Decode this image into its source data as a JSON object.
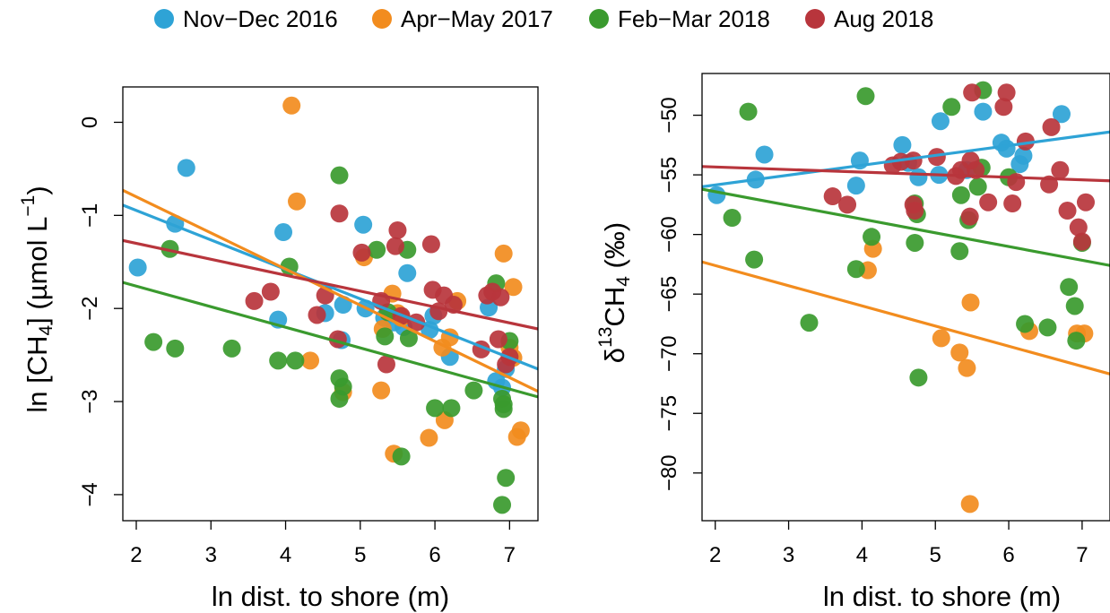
{
  "legend": {
    "items": [
      {
        "label": "Nov−Dec 2016",
        "color": "#2ea3d6"
      },
      {
        "label": "Apr−May 2017",
        "color": "#f28c1e"
      },
      {
        "label": "Feb−Mar 2018",
        "color": "#3a9a2e"
      },
      {
        "label": "Aug 2018",
        "color": "#b8353c"
      }
    ]
  },
  "chart_data": [
    {
      "type": "scatter",
      "xlabel": "ln dist. to shore (m)",
      "ylabel": "ln [CH4] (µmol L⁻¹)",
      "xlim": [
        1.82,
        7.38
      ],
      "ylim": [
        -4.28,
        0.38
      ],
      "xticks": [
        2,
        3,
        4,
        5,
        6,
        7
      ],
      "yticks": [
        0,
        -1,
        -2,
        -3,
        -4
      ],
      "legend_position": "top",
      "series": [
        {
          "name": "Nov−Dec 2016",
          "color": "#2ea3d6",
          "points": [
            [
              2.02,
              -1.56
            ],
            [
              2.52,
              -1.09
            ],
            [
              2.67,
              -0.49
            ],
            [
              3.9,
              -2.12
            ],
            [
              3.97,
              -1.18
            ],
            [
              4.53,
              -2.05
            ],
            [
              4.75,
              -2.34
            ],
            [
              4.77,
              -1.96
            ],
            [
              5.04,
              -1.1
            ],
            [
              5.07,
              -2.0
            ],
            [
              5.32,
              -2.1
            ],
            [
              5.45,
              -2.15
            ],
            [
              5.58,
              -2.2
            ],
            [
              5.63,
              -1.62
            ],
            [
              5.93,
              -2.23
            ],
            [
              5.98,
              -2.08
            ],
            [
              6.2,
              -2.52
            ],
            [
              6.72,
              -1.99
            ],
            [
              6.82,
              -2.78
            ],
            [
              6.9,
              -2.85
            ],
            [
              6.95,
              -2.65
            ]
          ],
          "fit": [
            [
              1.82,
              -0.89
            ],
            [
              7.38,
              -2.65
            ]
          ]
        },
        {
          "name": "Apr−May 2017",
          "color": "#f28c1e",
          "points": [
            [
              4.08,
              0.18
            ],
            [
              4.15,
              -0.85
            ],
            [
              4.33,
              -2.56
            ],
            [
              4.77,
              -2.9
            ],
            [
              5.05,
              -1.45
            ],
            [
              5.28,
              -2.88
            ],
            [
              5.3,
              -2.22
            ],
            [
              5.43,
              -1.84
            ],
            [
              5.45,
              -3.56
            ],
            [
              5.5,
              -2.05
            ],
            [
              5.55,
              -2.1
            ],
            [
              5.92,
              -3.39
            ],
            [
              6.1,
              -2.42
            ],
            [
              6.13,
              -3.2
            ],
            [
              6.2,
              -2.31
            ],
            [
              6.3,
              -1.92
            ],
            [
              6.92,
              -1.41
            ],
            [
              7.0,
              -2.42
            ],
            [
              7.05,
              -2.53
            ],
            [
              7.05,
              -1.77
            ],
            [
              7.1,
              -3.38
            ],
            [
              7.15,
              -3.31
            ]
          ],
          "fit": [
            [
              1.82,
              -0.73
            ],
            [
              7.38,
              -2.89
            ]
          ]
        },
        {
          "name": "Feb−Mar 2018",
          "color": "#3a9a2e",
          "points": [
            [
              2.23,
              -2.36
            ],
            [
              2.45,
              -1.36
            ],
            [
              2.52,
              -2.43
            ],
            [
              3.28,
              -2.43
            ],
            [
              3.9,
              -2.56
            ],
            [
              4.05,
              -1.55
            ],
            [
              4.13,
              -2.56
            ],
            [
              4.72,
              -0.57
            ],
            [
              4.72,
              -2.97
            ],
            [
              4.72,
              -2.75
            ],
            [
              4.77,
              -2.84
            ],
            [
              5.22,
              -1.37
            ],
            [
              5.33,
              -2.3
            ],
            [
              5.37,
              -2.04
            ],
            [
              5.55,
              -3.59
            ],
            [
              5.63,
              -1.37
            ],
            [
              5.65,
              -2.32
            ],
            [
              6.0,
              -3.07
            ],
            [
              6.22,
              -3.07
            ],
            [
              6.52,
              -2.88
            ],
            [
              6.82,
              -1.73
            ],
            [
              6.9,
              -2.97
            ],
            [
              6.92,
              -3.08
            ],
            [
              6.9,
              -4.11
            ],
            [
              6.95,
              -3.82
            ],
            [
              7.0,
              -2.35
            ],
            [
              6.92,
              -3.03
            ]
          ],
          "fit": [
            [
              1.82,
              -1.72
            ],
            [
              7.38,
              -2.95
            ]
          ]
        },
        {
          "name": "Aug 2018",
          "color": "#b8353c",
          "points": [
            [
              3.58,
              -1.92
            ],
            [
              3.8,
              -1.82
            ],
            [
              4.42,
              -2.07
            ],
            [
              4.53,
              -1.86
            ],
            [
              4.7,
              -2.33
            ],
            [
              4.72,
              -0.98
            ],
            [
              5.02,
              -1.4
            ],
            [
              5.28,
              -1.92
            ],
            [
              5.35,
              -2.6
            ],
            [
              5.47,
              -1.33
            ],
            [
              5.5,
              -1.16
            ],
            [
              5.55,
              -2.08
            ],
            [
              5.75,
              -2.15
            ],
            [
              5.95,
              -1.31
            ],
            [
              5.97,
              -1.8
            ],
            [
              6.05,
              -2.03
            ],
            [
              6.12,
              -1.86
            ],
            [
              6.25,
              -1.96
            ],
            [
              6.62,
              -2.44
            ],
            [
              6.7,
              -1.86
            ],
            [
              6.77,
              -1.82
            ],
            [
              6.85,
              -2.33
            ],
            [
              6.88,
              -1.88
            ],
            [
              6.95,
              -2.6
            ],
            [
              7.0,
              -2.52
            ]
          ],
          "fit": [
            [
              1.82,
              -1.27
            ],
            [
              7.38,
              -2.22
            ]
          ]
        }
      ]
    },
    {
      "type": "scatter",
      "xlabel": "ln dist. to shore (m)",
      "ylabel": "δ13CH4 (‰)",
      "xlim": [
        1.82,
        7.38
      ],
      "ylim": [
        -84.0,
        -46.5
      ],
      "xticks": [
        2,
        3,
        4,
        5,
        6,
        7
      ],
      "yticks": [
        -50,
        -55,
        -60,
        -65,
        -70,
        -75,
        -80
      ],
      "legend_position": "top",
      "series": [
        {
          "name": "Nov−Dec 2016",
          "color": "#2ea3d6",
          "points": [
            [
              2.02,
              -56.7
            ],
            [
              2.55,
              -55.4
            ],
            [
              2.67,
              -53.3
            ],
            [
              3.92,
              -55.9
            ],
            [
              3.97,
              -53.8
            ],
            [
              4.55,
              -52.5
            ],
            [
              4.63,
              -54.0
            ],
            [
              4.77,
              -55.2
            ],
            [
              5.05,
              -55.0
            ],
            [
              5.07,
              -50.5
            ],
            [
              5.43,
              -54.6
            ],
            [
              5.65,
              -49.7
            ],
            [
              5.9,
              -52.3
            ],
            [
              5.97,
              -52.8
            ],
            [
              6.15,
              -54.1
            ],
            [
              6.2,
              -53.4
            ],
            [
              6.72,
              -49.9
            ]
          ],
          "fit": [
            [
              1.82,
              -56.0
            ],
            [
              7.38,
              -51.4
            ]
          ]
        },
        {
          "name": "Apr−May 2017",
          "color": "#f28c1e",
          "points": [
            [
              4.08,
              -63.0
            ],
            [
              4.15,
              -61.2
            ],
            [
              5.08,
              -68.7
            ],
            [
              5.33,
              -69.9
            ],
            [
              5.43,
              -71.2
            ],
            [
              5.48,
              -65.7
            ],
            [
              5.47,
              -82.6
            ],
            [
              6.28,
              -68.1
            ],
            [
              6.93,
              -68.3
            ],
            [
              7.03,
              -68.3
            ]
          ],
          "fit": [
            [
              1.82,
              -62.3
            ],
            [
              7.38,
              -71.7
            ]
          ]
        },
        {
          "name": "Feb−Mar 2018",
          "color": "#3a9a2e",
          "points": [
            [
              2.23,
              -58.6
            ],
            [
              2.45,
              -49.7
            ],
            [
              2.53,
              -62.1
            ],
            [
              3.28,
              -67.4
            ],
            [
              3.92,
              -62.9
            ],
            [
              4.05,
              -48.4
            ],
            [
              4.13,
              -60.2
            ],
            [
              4.72,
              -60.7
            ],
            [
              4.72,
              -57.4
            ],
            [
              4.75,
              -58.3
            ],
            [
              4.77,
              -72.0
            ],
            [
              5.22,
              -49.3
            ],
            [
              5.33,
              -61.4
            ],
            [
              5.35,
              -56.7
            ],
            [
              5.45,
              -58.8
            ],
            [
              5.58,
              -56.0
            ],
            [
              5.63,
              -54.4
            ],
            [
              5.65,
              -47.9
            ],
            [
              6.0,
              -55.2
            ],
            [
              6.22,
              -67.5
            ],
            [
              6.53,
              -67.8
            ],
            [
              6.82,
              -64.4
            ],
            [
              6.9,
              -66.0
            ],
            [
              6.92,
              -68.9
            ],
            [
              7.0,
              -60.7
            ]
          ],
          "fit": [
            [
              1.82,
              -56.2
            ],
            [
              7.38,
              -62.6
            ]
          ]
        },
        {
          "name": "Aug 2018",
          "color": "#b8353c",
          "points": [
            [
              3.6,
              -56.8
            ],
            [
              3.8,
              -57.5
            ],
            [
              4.42,
              -54.2
            ],
            [
              4.53,
              -53.9
            ],
            [
              4.7,
              -57.5
            ],
            [
              4.72,
              -58.0
            ],
            [
              4.7,
              -53.8
            ],
            [
              5.02,
              -53.5
            ],
            [
              5.28,
              -55.1
            ],
            [
              5.35,
              -54.6
            ],
            [
              5.47,
              -58.5
            ],
            [
              5.48,
              -53.8
            ],
            [
              5.5,
              -48.1
            ],
            [
              5.55,
              -54.6
            ],
            [
              5.72,
              -57.3
            ],
            [
              5.93,
              -49.3
            ],
            [
              5.97,
              -48.1
            ],
            [
              6.05,
              -57.4
            ],
            [
              6.1,
              -55.6
            ],
            [
              6.23,
              -52.2
            ],
            [
              6.55,
              -55.8
            ],
            [
              6.58,
              -51.0
            ],
            [
              6.7,
              -54.6
            ],
            [
              6.8,
              -58.0
            ],
            [
              6.95,
              -59.4
            ],
            [
              7.0,
              -60.6
            ],
            [
              7.05,
              -57.3
            ]
          ],
          "fit": [
            [
              1.82,
              -54.3
            ],
            [
              7.38,
              -55.5
            ]
          ]
        }
      ]
    }
  ]
}
